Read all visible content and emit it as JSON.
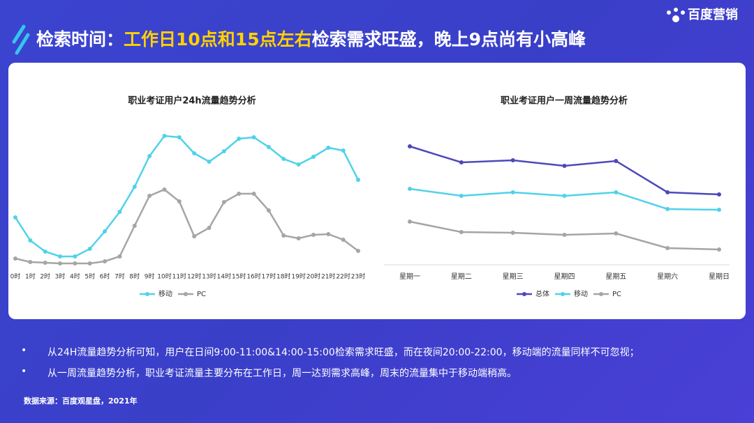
{
  "header": {
    "title_parts": [
      "检索时间：",
      "工作日10点和15点左右",
      "检索需求旺盛，晚上9点尚有小高峰"
    ],
    "logo": "百度营销"
  },
  "bullets": [
    "从24H流量趋势分析可知，用户在日间9:00-11:00&14:00-15:00检索需求旺盛，而在夜间20:00-22:00，移动端的流量同样不可忽视；",
    "从一周流量趋势分析，职业考证流量主要分布在工作日，周一达到需求高峰，周末的流量集中于移动端稍高。"
  ],
  "source": "数据来源：百度观星盘，2021年",
  "chart_data": [
    {
      "type": "line",
      "title": "职业考证用户24h流量趋势分析",
      "categories": [
        "0时",
        "1时",
        "2时",
        "3时",
        "4时",
        "5时",
        "6时",
        "7时",
        "8时",
        "9时",
        "10时",
        "11时",
        "12时",
        "13时",
        "14时",
        "15时",
        "16时",
        "17时",
        "18时",
        "19时",
        "20时",
        "21时",
        "22时",
        "23时"
      ],
      "series": [
        {
          "name": "移动",
          "color": "#4fd2ea",
          "values": [
            36.5,
            20,
            12,
            8.5,
            8.5,
            14,
            26.5,
            40.5,
            58.5,
            80.5,
            95,
            94,
            82.5,
            76.5,
            84,
            93,
            94,
            87,
            78.5,
            74.5,
            80,
            86.5,
            84.5,
            63.5
          ]
        },
        {
          "name": "PC",
          "color": "#a5a5a5",
          "values": [
            7,
            4.5,
            4,
            3.5,
            3.5,
            3.5,
            5,
            8.5,
            30.5,
            52,
            56.5,
            48,
            23,
            29,
            47.5,
            53.5,
            53.5,
            41.5,
            23.5,
            21.5,
            24,
            24.5,
            20.5,
            12.5
          ]
        }
      ],
      "ylim": [
        0,
        100
      ]
    },
    {
      "type": "line",
      "title": "职业考证用户一周流量趋势分析",
      "categories": [
        "星期一",
        "星期二",
        "星期三",
        "星期四",
        "星期五",
        "星期六",
        "星期日"
      ],
      "series": [
        {
          "name": "总体",
          "color": "#4e48b8",
          "values": [
            85,
            73.5,
            75,
            71,
            74.5,
            52,
            50.5
          ]
        },
        {
          "name": "移动",
          "color": "#4fd2ea",
          "values": [
            54.5,
            49.5,
            52,
            49.5,
            52,
            40,
            39.5
          ]
        },
        {
          "name": "PC",
          "color": "#a5a5a5",
          "values": [
            31,
            23.5,
            23,
            21.5,
            22.5,
            12,
            11
          ]
        }
      ],
      "ylim": [
        0,
        100
      ]
    }
  ]
}
